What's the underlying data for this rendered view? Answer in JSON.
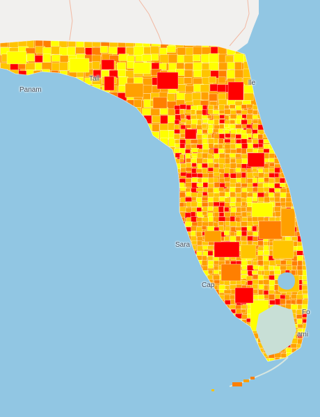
{
  "map": {
    "region": "Florida",
    "colors": {
      "water": "#91c6e3",
      "land_neighbor": "#f1f0ee",
      "state_border": "#f2b9a3",
      "land_base": "#d7e6df",
      "no_data": "#c8dfd6",
      "choropleth": [
        "#ffff00",
        "#ffc400",
        "#ffa000",
        "#ff7f00",
        "#ff0000"
      ]
    },
    "labels": {
      "panama": "Panam",
      "tallahassee": "Tall",
      "jacksonville": "lle",
      "sarasota": "Sara",
      "cape_coral": "Cap",
      "fort_lauderdale": "Fo",
      "miami": "ami"
    }
  }
}
